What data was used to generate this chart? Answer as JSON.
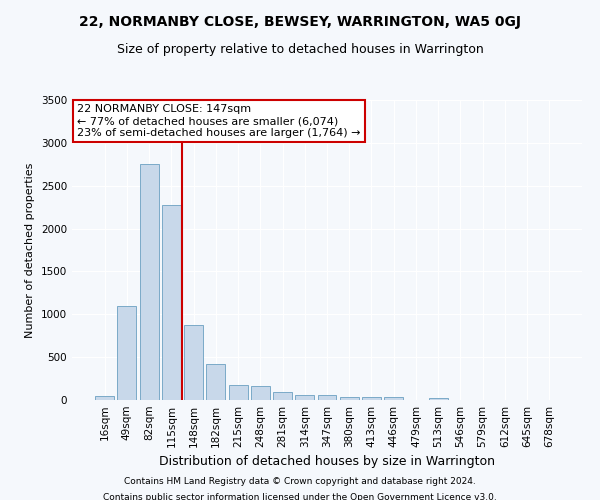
{
  "title": "22, NORMANBY CLOSE, BEWSEY, WARRINGTON, WA5 0GJ",
  "subtitle": "Size of property relative to detached houses in Warrington",
  "xlabel": "Distribution of detached houses by size in Warrington",
  "ylabel": "Number of detached properties",
  "footnote1": "Contains HM Land Registry data © Crown copyright and database right 2024.",
  "footnote2": "Contains public sector information licensed under the Open Government Licence v3.0.",
  "categories": [
    "16sqm",
    "49sqm",
    "82sqm",
    "115sqm",
    "148sqm",
    "182sqm",
    "215sqm",
    "248sqm",
    "281sqm",
    "314sqm",
    "347sqm",
    "380sqm",
    "413sqm",
    "446sqm",
    "479sqm",
    "513sqm",
    "546sqm",
    "579sqm",
    "612sqm",
    "645sqm",
    "678sqm"
  ],
  "values": [
    50,
    1100,
    2750,
    2280,
    870,
    415,
    170,
    165,
    90,
    60,
    55,
    30,
    35,
    30,
    5,
    20,
    5,
    5,
    5,
    5,
    5
  ],
  "bar_color": "#c8d8ea",
  "bar_edge_color": "#7aaac8",
  "ylim": [
    0,
    3500
  ],
  "yticks": [
    0,
    500,
    1000,
    1500,
    2000,
    2500,
    3000,
    3500
  ],
  "property_label": "22 NORMANBY CLOSE: 147sqm",
  "pct_smaller": "77%",
  "n_smaller": "6,074",
  "pct_larger_semi": "23%",
  "n_larger_semi": "1,764",
  "vline_x": 3.5,
  "annotation_box_color": "#cc0000",
  "background_color": "#f5f8fc",
  "grid_color": "#ffffff",
  "title_fontsize": 10,
  "subtitle_fontsize": 9,
  "ylabel_fontsize": 8,
  "xlabel_fontsize": 9,
  "tick_fontsize": 7.5,
  "annot_fontsize": 8
}
